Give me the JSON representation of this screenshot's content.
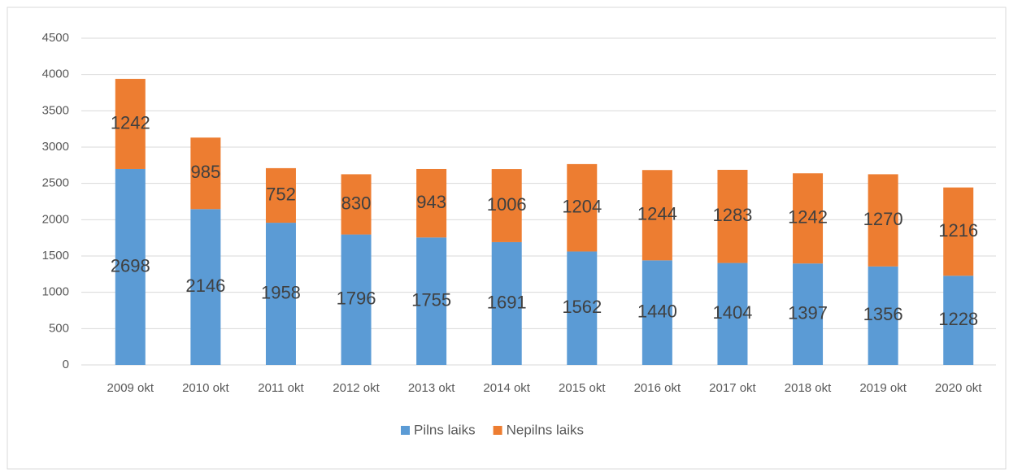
{
  "chart_data": {
    "type": "bar",
    "stacked": true,
    "categories": [
      "2009 okt",
      "2010 okt",
      "2011 okt",
      "2012 okt",
      "2013 okt",
      "2014 okt",
      "2015 okt",
      "2016 okt",
      "2017 okt",
      "2018 okt",
      "2019 okt",
      "2020 okt"
    ],
    "series": [
      {
        "name": "Pilns laiks",
        "color": "#5b9bd5",
        "values": [
          2698,
          2146,
          1958,
          1796,
          1755,
          1691,
          1562,
          1440,
          1404,
          1397,
          1356,
          1228
        ]
      },
      {
        "name": "Nepilns laiks",
        "color": "#ed7d31",
        "values": [
          1242,
          985,
          752,
          830,
          943,
          1006,
          1204,
          1244,
          1283,
          1242,
          1270,
          1216
        ]
      }
    ],
    "ylim": [
      0,
      4500
    ],
    "yticks": [
      0,
      500,
      1000,
      1500,
      2000,
      2500,
      3000,
      3500,
      4000,
      4500
    ],
    "grid": true,
    "legend": "bottom"
  }
}
